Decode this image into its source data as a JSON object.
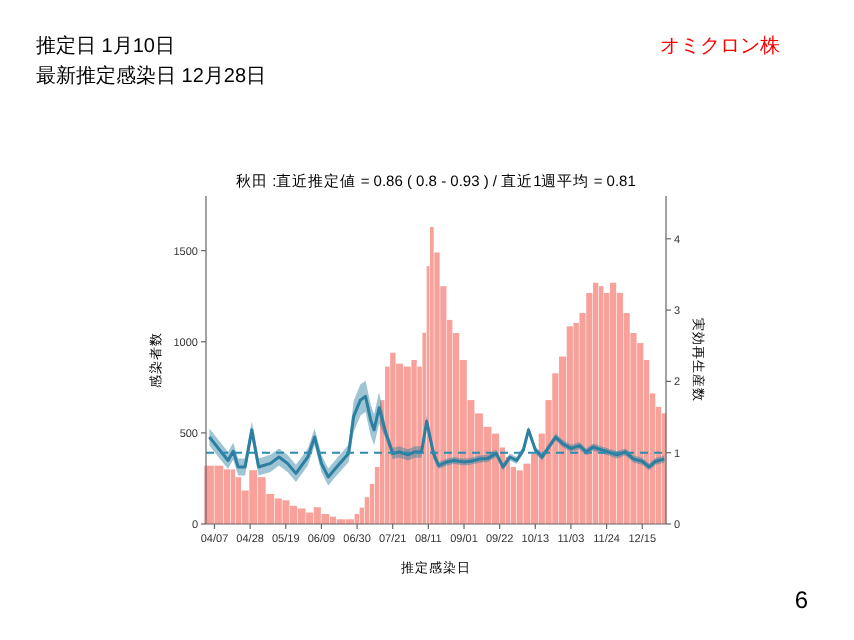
{
  "chart_data": {
    "type": "bar",
    "title": "秋田 :直近推定値 = 0.86 ( 0.8 - 0.93 ) / 直近1週平均 = 0.81",
    "xlabel": "推定感染日",
    "ylabel": "感染者数",
    "y2label": "実効再生産数",
    "annotations": [
      "推定日 1月10日",
      "最新推定感染日 12月28日",
      "オミクロン株",
      "6"
    ],
    "xlim": [
      "--04-02",
      "--12-29"
    ],
    "xticks": [
      {
        "value": "--04-07",
        "label": "04/07"
      },
      {
        "value": "--04-28",
        "label": "04/28"
      },
      {
        "value": "--05-19",
        "label": "05/19"
      },
      {
        "value": "--06-09",
        "label": "06/09"
      },
      {
        "value": "--06-30",
        "label": "06/30"
      },
      {
        "value": "--07-21",
        "label": "07/21"
      },
      {
        "value": "--08-11",
        "label": "08/11"
      },
      {
        "value": "--09-01",
        "label": "09/01"
      },
      {
        "value": "--09-22",
        "label": "09/22"
      },
      {
        "value": "--10-13",
        "label": "10/13"
      },
      {
        "value": "--11-03",
        "label": "11/03"
      },
      {
        "value": "--11-24",
        "label": "11/24"
      },
      {
        "value": "--12-15",
        "label": "12/15"
      }
    ],
    "ylim": [
      0,
      1800
    ],
    "yticks": [
      0,
      500,
      1000,
      1500
    ],
    "y2lim": [
      0,
      4.6
    ],
    "y2ticks": [
      0,
      1,
      2,
      3,
      4
    ],
    "ref_lines": [
      {
        "axis": "y2",
        "value": 1,
        "color": "#2b8cb0",
        "line_style": "dashed"
      }
    ],
    "series": [
      {
        "color": "#f8a09a",
        "x": [
          "--04-04",
          "--04-10",
          "--04-15",
          "--04-18",
          "--04-21",
          "--04-25",
          "--04-30",
          "--05-05",
          "--05-10",
          "--05-15",
          "--05-19",
          "--05-24",
          "--05-28",
          "--06-03",
          "--06-06",
          "--06-12",
          "--06-16",
          "--06-20",
          "--06-27",
          "--06-30",
          "--07-03",
          "--07-06",
          "--07-09",
          "--07-12",
          "--07-15",
          "--07-18",
          "--07-21",
          "--07-25",
          "--07-30",
          "--08-03",
          "--08-06",
          "--08-09",
          "--08-11",
          "--08-13",
          "--08-16",
          "--08-20",
          "--08-24",
          "--08-27",
          "--09-01",
          "--09-05",
          "--09-10",
          "--09-15",
          "--09-20",
          "--09-24",
          "--09-27",
          "--09-30",
          "--10-04",
          "--10-08",
          "--10-13",
          "--10-17",
          "--10-21",
          "--10-25",
          "--10-29",
          "--11-03",
          "--11-06",
          "--11-10",
          "--11-14",
          "--11-18",
          "--11-21",
          "--11-24",
          "--11-28",
          "--12-02",
          "--12-06",
          "--12-10",
          "--12-14",
          "--12-18",
          "--12-21",
          "--12-25",
          "--12-28"
        ],
        "values": [
          320,
          320,
          300,
          300,
          257,
          184,
          295,
          257,
          165,
          140,
          130,
          100,
          85,
          63,
          92,
          55,
          40,
          26,
          26,
          55,
          90,
          147,
          220,
          313,
          680,
          864,
          940,
          880,
          864,
          900,
          864,
          1050,
          1415,
          1630,
          1490,
          1305,
          1120,
          1048,
          900,
          680,
          607,
          533,
          496,
          420,
          368,
          313,
          294,
          331,
          386,
          496,
          680,
          827,
          919,
          1085,
          1103,
          1158,
          1268,
          1324,
          1305,
          1268,
          1324,
          1268,
          1158,
          1048,
          993,
          900,
          717,
          643,
          607
        ]
      },
      {
        "type": "line",
        "axis": "y2",
        "color": "#2b7fa0",
        "x": [
          "--04-04",
          "--04-10",
          "--04-15",
          "--04-18",
          "--04-21",
          "--04-25",
          "--04-29",
          "--05-03",
          "--05-10",
          "--05-15",
          "--05-20",
          "--05-25",
          "--06-01",
          "--06-05",
          "--06-09",
          "--06-13",
          "--06-18",
          "--06-25",
          "--06-28",
          "--07-02",
          "--07-05",
          "--07-08",
          "--07-10",
          "--07-13",
          "--07-17",
          "--07-21",
          "--07-25",
          "--07-30",
          "--08-03",
          "--08-07",
          "--08-10",
          "--08-14",
          "--08-17",
          "--08-22",
          "--08-26",
          "--09-01",
          "--09-05",
          "--09-10",
          "--09-15",
          "--09-20",
          "--09-24",
          "--09-28",
          "--10-02",
          "--10-06",
          "--10-09",
          "--10-13",
          "--10-17",
          "--10-21",
          "--10-25",
          "--10-29",
          "--11-03",
          "--11-08",
          "--11-12",
          "--11-16",
          "--11-21",
          "--11-25",
          "--11-30",
          "--12-05",
          "--12-10",
          "--12-15",
          "--12-19",
          "--12-23",
          "--12-28"
        ],
        "values": [
          1.22,
          1.04,
          0.89,
          1.02,
          0.8,
          0.8,
          1.32,
          0.8,
          0.85,
          0.94,
          0.85,
          0.71,
          0.94,
          1.22,
          0.85,
          0.66,
          0.8,
          0.99,
          1.51,
          1.74,
          1.79,
          1.46,
          1.32,
          1.63,
          1.27,
          0.99,
          1.01,
          0.97,
          1.01,
          1.01,
          1.44,
          0.99,
          0.82,
          0.87,
          0.89,
          0.87,
          0.88,
          0.91,
          0.92,
          0.99,
          0.8,
          0.94,
          0.89,
          1.04,
          1.32,
          1.04,
          0.94,
          1.08,
          1.22,
          1.13,
          1.06,
          1.1,
          1.01,
          1.08,
          1.04,
          1.01,
          0.97,
          1.01,
          0.91,
          0.88,
          0.8,
          0.88,
          0.91
        ],
        "lower": [
          1.1,
          0.92,
          0.77,
          0.9,
          0.68,
          0.68,
          1.2,
          0.68,
          0.73,
          0.82,
          0.73,
          0.59,
          0.82,
          1.1,
          0.73,
          0.54,
          0.68,
          0.87,
          1.29,
          1.52,
          1.57,
          1.24,
          1.1,
          1.41,
          1.19,
          0.91,
          0.93,
          0.89,
          0.93,
          0.93,
          1.36,
          0.91,
          0.77,
          0.82,
          0.84,
          0.82,
          0.83,
          0.86,
          0.87,
          0.94,
          0.75,
          0.89,
          0.84,
          0.99,
          1.27,
          0.99,
          0.89,
          1.03,
          1.17,
          1.08,
          1.01,
          1.05,
          0.96,
          1.03,
          0.99,
          0.96,
          0.92,
          0.96,
          0.86,
          0.83,
          0.75,
          0.83,
          0.86
        ],
        "upper": [
          1.34,
          1.16,
          1.01,
          1.14,
          0.92,
          0.92,
          1.44,
          0.92,
          0.97,
          1.06,
          0.97,
          0.83,
          1.06,
          1.34,
          0.97,
          0.78,
          0.92,
          1.11,
          1.73,
          1.96,
          2.01,
          1.68,
          1.54,
          1.85,
          1.35,
          1.07,
          1.09,
          1.05,
          1.09,
          1.09,
          1.52,
          1.07,
          0.87,
          0.92,
          0.94,
          0.92,
          0.93,
          0.96,
          0.97,
          1.04,
          0.85,
          0.99,
          0.94,
          1.09,
          1.37,
          1.09,
          0.99,
          1.13,
          1.27,
          1.18,
          1.11,
          1.15,
          1.06,
          1.13,
          1.09,
          1.06,
          1.02,
          1.06,
          0.96,
          0.93,
          0.85,
          0.93,
          0.96
        ]
      }
    ]
  }
}
